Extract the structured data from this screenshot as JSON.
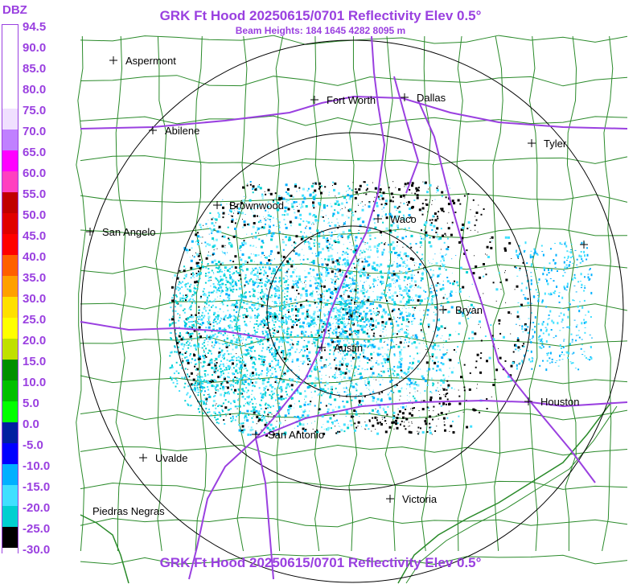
{
  "header": {
    "title": "GRK Ft Hood 20250615/0701 Reflectivity Elev 0.5°",
    "subtitle": "Beam Heights: 184 1645 4282 8095 m",
    "footer_title": "GRK Ft Hood 20250615/0701 Reflectivity Elev 0.5°"
  },
  "legend": {
    "title": "DBZ",
    "labels": [
      "94.5",
      "90.0",
      "85.0",
      "80.0",
      "75.0",
      "70.0",
      "65.0",
      "60.0",
      "55.0",
      "50.0",
      "45.0",
      "40.0",
      "35.0",
      "30.0",
      "25.0",
      "20.0",
      "15.0",
      "10.0",
      "5.0",
      "0.0",
      "-5.0",
      "-10.0",
      "-15.0",
      "-20.0",
      "-25.0",
      "-30.0"
    ],
    "colors": [
      "#ffffff",
      "#ffffff",
      "#ffffff",
      "#ffffff",
      "#f0e0ff",
      "#c080ff",
      "#ff00ff",
      "#ff40c0",
      "#c00000",
      "#e00000",
      "#ff0000",
      "#ff6000",
      "#ffa000",
      "#ffe000",
      "#ffff00",
      "#c0e000",
      "#009000",
      "#00c000",
      "#00ff00",
      "#0020a0",
      "#0000ff",
      "#00b0ff",
      "#40e0ff",
      "#00d0d0",
      "#000000",
      "#ffffff"
    ]
  },
  "map": {
    "line_color": "#2a8a2a",
    "highway_color": "#9a40e0",
    "ring_color": "#000000",
    "cities": [
      {
        "name": "Aspermont"
      },
      {
        "name": "Fort Worth"
      },
      {
        "name": "Dallas"
      },
      {
        "name": "Abilene"
      },
      {
        "name": "Tyler"
      },
      {
        "name": "Brownwood"
      },
      {
        "name": "Waco"
      },
      {
        "name": "San Angelo"
      },
      {
        "name": "Bryan"
      },
      {
        "name": "Austin"
      },
      {
        "name": "Houston"
      },
      {
        "name": "San Antonio"
      },
      {
        "name": "Uvalde"
      },
      {
        "name": "Victoria"
      },
      {
        "name": "Piedras Negras"
      }
    ]
  }
}
